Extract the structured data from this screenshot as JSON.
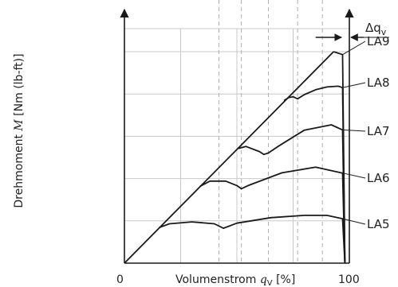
{
  "chart_data": {
    "type": "line",
    "ylabel": {
      "prefix": "Drehmoment ",
      "symbol": "M",
      "suffix": " [Nm (lb-ft)]"
    },
    "xlabel": {
      "prefix": "Volumenstrom ",
      "symbol": "q",
      "subscript": "V",
      "suffix": " [%]"
    },
    "x_tick_labels": [
      "0",
      "100"
    ],
    "xlim": [
      0,
      100
    ],
    "delta_label": "Δq",
    "delta_sub": "v",
    "limit_line": {
      "x": [
        0,
        93
      ],
      "y": [
        0,
        100
      ]
    },
    "series": [
      {
        "name": "LA9",
        "x": [
          93,
          97,
          98
        ],
        "y": [
          100,
          98.6,
          0
        ]
      },
      {
        "name": "LA8",
        "x": [
          71,
          73,
          75,
          77,
          80,
          85,
          90,
          95,
          97,
          98
        ],
        "y": [
          76.9,
          78.3,
          78.7,
          77.7,
          79.7,
          82,
          83.3,
          83.7,
          83,
          0
        ]
      },
      {
        "name": "LA7",
        "x": [
          50.7,
          54,
          60,
          62,
          64,
          68,
          80,
          92,
          97,
          98
        ],
        "y": [
          54.2,
          55.2,
          52.8,
          51.4,
          52.1,
          55,
          62.9,
          65.4,
          63,
          0
        ]
      },
      {
        "name": "LA6",
        "x": [
          33.6,
          38,
          45,
          50,
          52,
          55,
          70,
          85,
          97,
          98
        ],
        "y": [
          36.3,
          38.8,
          38.8,
          36.7,
          35.2,
          36.7,
          42.7,
          45.4,
          42.6,
          0
        ]
      },
      {
        "name": "LA5",
        "x": [
          15.4,
          20,
          30,
          40,
          44,
          50,
          65,
          80,
          90,
          97,
          98
        ],
        "y": [
          16.8,
          18.6,
          19.5,
          18.6,
          16.5,
          18.9,
          21.5,
          22.6,
          22.6,
          21,
          0
        ]
      }
    ],
    "grid": true,
    "legend": "right"
  }
}
